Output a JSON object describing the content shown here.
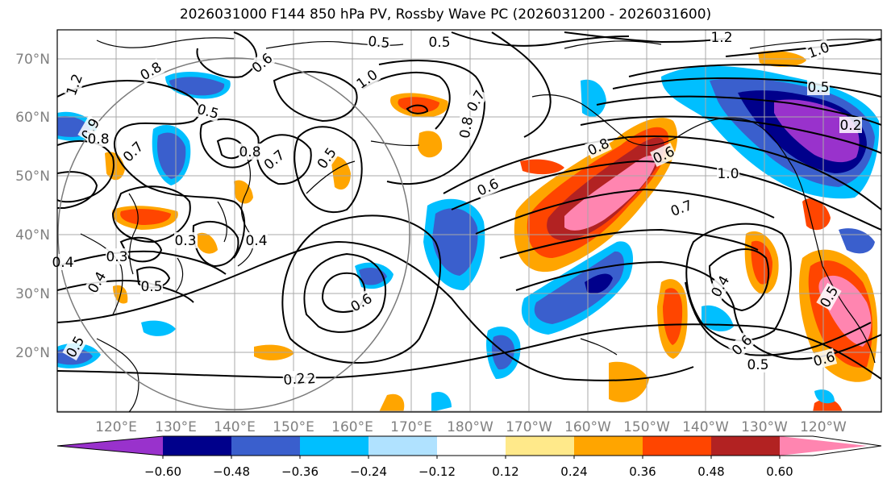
{
  "title": "2026031000 F144 850 hPa PV, Rossby Wave PC (2026031200 - 2026031600)",
  "lat_labels": [
    "70°N",
    "60°N",
    "50°N",
    "40°N",
    "30°N",
    "20°N"
  ],
  "lon_labels": [
    "120°E",
    "130°E",
    "140°E",
    "150°E",
    "160°E",
    "170°E",
    "180°W",
    "170°W",
    "160°W",
    "150°W",
    "140°W",
    "130°W",
    "120°W"
  ],
  "contour_labels": [
    "1.2",
    "0.8",
    "0.6",
    "0.5",
    "0.5",
    "1.0",
    "0.7",
    "0.8",
    "1.2",
    "1.0",
    "0.4",
    "0.5",
    "0.2",
    "0.9",
    "0.8",
    "0.7",
    "0.5",
    "0.8",
    "0.5",
    "0.7",
    "0.4",
    "0.3",
    "0.3",
    "0.5",
    "0.4",
    "0.5",
    "0.6",
    "0.6",
    "0.8",
    "0.6",
    "1.0",
    "0.7",
    "0.4",
    "0.6",
    "0.5",
    "0.6",
    "0.5",
    "0.2",
    "0.2"
  ],
  "colorbar": {
    "colors": [
      "#9932cc",
      "#00008b",
      "#3a5fcd",
      "#00bfff",
      "#b0e2ff",
      "#ffffff",
      "#ffe98a",
      "#ffa500",
      "#ff4500",
      "#b22222",
      "#ff85b0"
    ],
    "tick_labels": [
      "−0.60",
      "−0.48",
      "−0.36",
      "−0.24",
      "−0.12",
      "0.12",
      "0.24",
      "0.36",
      "0.48",
      "0.60"
    ]
  }
}
